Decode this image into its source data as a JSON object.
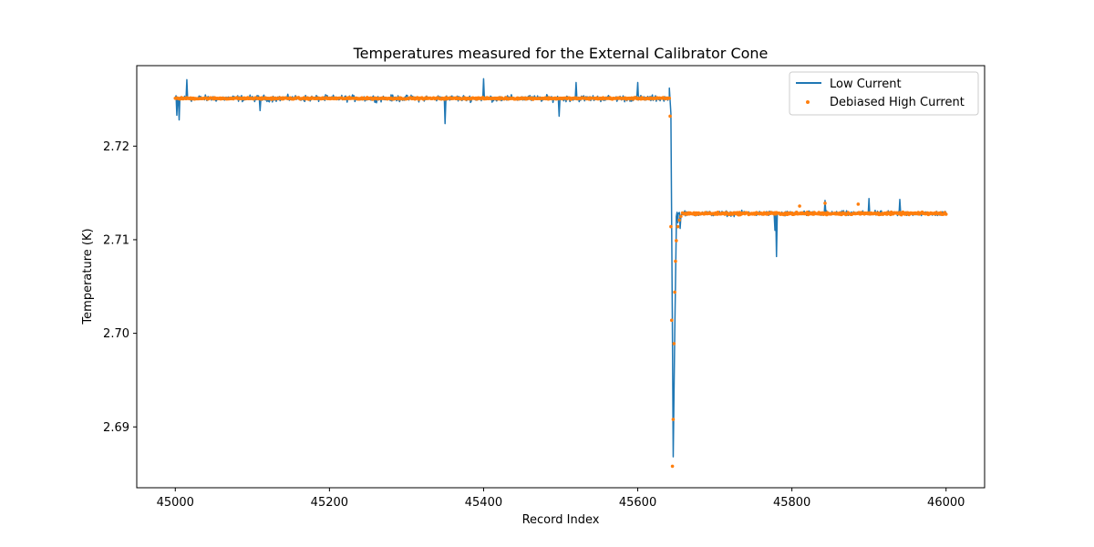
{
  "chart_data": {
    "type": "line",
    "title": "Temperatures measured for the External Calibrator Cone",
    "xlabel": "Record Index",
    "ylabel": "Temperature (K)",
    "xlim": [
      44950,
      46050
    ],
    "ylim": [
      2.6835,
      2.7286
    ],
    "xticks": [
      45000,
      45200,
      45400,
      45600,
      45800,
      46000
    ],
    "xtick_labels": [
      "45000",
      "45200",
      "45400",
      "45600",
      "45800",
      "46000"
    ],
    "yticks": [
      2.69,
      2.7,
      2.71,
      2.72
    ],
    "ytick_labels": [
      "2.69",
      "2.70",
      "2.71",
      "2.72"
    ],
    "legend_position": "top-right",
    "series": [
      {
        "name": "Low Current",
        "kind": "line",
        "color": "#1f77b4",
        "segments": [
          {
            "x_start": 45000,
            "x_end": 45641,
            "mean": 2.7251,
            "noise": 0.0005,
            "spikes": [
              [
                45002,
                2.7233
              ],
              [
                45005,
                2.7228
              ],
              [
                45015,
                2.7271
              ],
              [
                45110,
                2.7238
              ],
              [
                45350,
                2.7224
              ],
              [
                45400,
                2.7272
              ],
              [
                45498,
                2.7232
              ],
              [
                45520,
                2.7268
              ],
              [
                45600,
                2.7268
              ]
            ]
          },
          {
            "x_start": 45650,
            "x_end": 46000,
            "mean": 2.7128,
            "noise": 0.0004,
            "spikes": [
              [
                45655,
                2.7112
              ],
              [
                45778,
                2.711
              ],
              [
                45780,
                2.7082
              ],
              [
                45843,
                2.7142
              ],
              [
                45900,
                2.7144
              ],
              [
                45940,
                2.7143
              ]
            ]
          }
        ],
        "drop": [
          [
            45641,
            2.7262
          ],
          [
            45643,
            2.7235
          ],
          [
            45645,
            2.7
          ],
          [
            45646,
            2.6868
          ],
          [
            45648,
            2.7
          ],
          [
            45650,
            2.7113
          ],
          [
            45652,
            2.7118
          ]
        ]
      },
      {
        "name": "Debiased High Current",
        "kind": "scatter",
        "color": "#ff7f0e",
        "segments": [
          {
            "x_start": 45000,
            "x_end": 45641,
            "mean": 2.7251,
            "noise": 0.00012,
            "spikes": []
          },
          {
            "x_start": 45658,
            "x_end": 46000,
            "mean": 2.7128,
            "noise": 0.00018,
            "spikes": [
              [
                45810,
                2.7136
              ],
              [
                45843,
                2.7139
              ],
              [
                45886,
                2.7138
              ]
            ]
          }
        ],
        "drop": [
          [
            45642,
            2.7232
          ],
          [
            45643,
            2.7114
          ],
          [
            45644,
            2.7014
          ],
          [
            45645,
            2.6858
          ],
          [
            45646,
            2.6908
          ],
          [
            45647,
            2.6989
          ],
          [
            45648,
            2.7044
          ],
          [
            45649,
            2.7077
          ],
          [
            45650,
            2.7099
          ],
          [
            45652,
            2.7114
          ],
          [
            45654,
            2.7121
          ],
          [
            45656,
            2.7125
          ]
        ]
      }
    ]
  }
}
